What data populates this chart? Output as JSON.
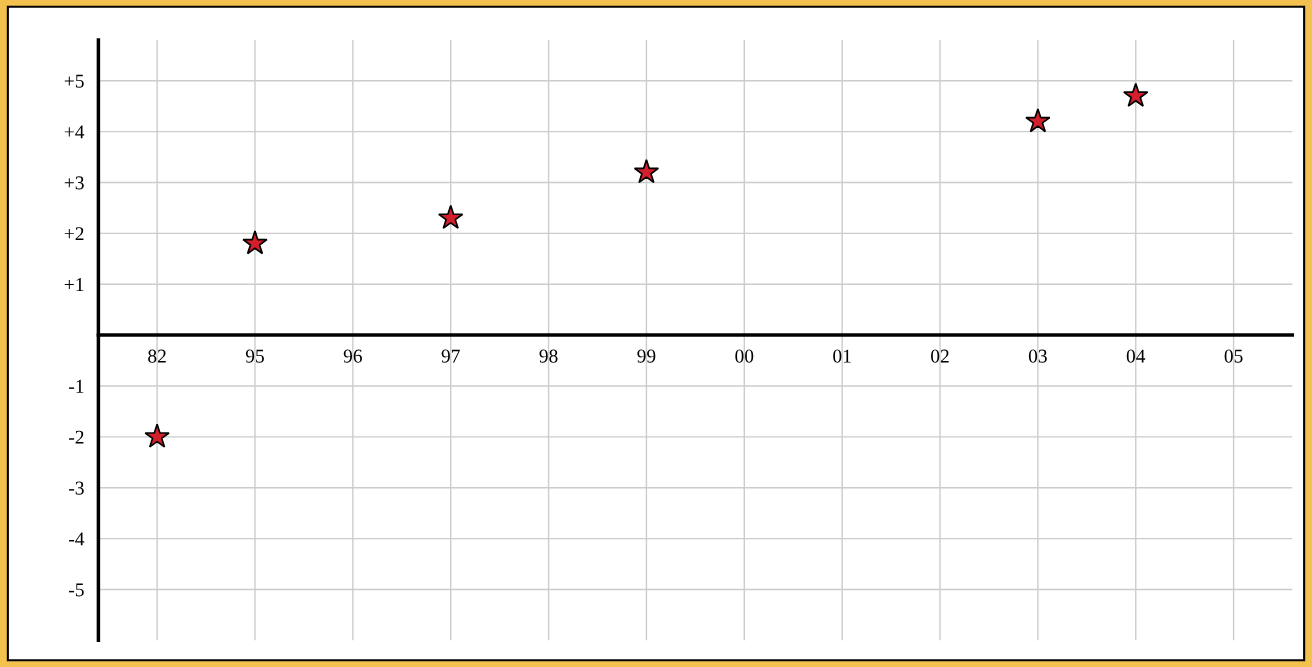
{
  "chart_data": {
    "type": "scatter",
    "categories": [
      "82",
      "95",
      "96",
      "97",
      "98",
      "99",
      "00",
      "01",
      "02",
      "03",
      "04",
      "05"
    ],
    "values": [
      -2,
      1.8,
      null,
      2.3,
      null,
      3.2,
      null,
      null,
      null,
      4.2,
      4.7,
      null
    ],
    "color": "#d21f2b",
    "marker": "star",
    "ylim": [
      -6,
      5.8
    ],
    "yticks": [
      {
        "value": 5,
        "label": "+5"
      },
      {
        "value": 4,
        "label": "+4"
      },
      {
        "value": 3,
        "label": "+3"
      },
      {
        "value": 2,
        "label": "+2"
      },
      {
        "value": 1,
        "label": "+1"
      },
      -1,
      -2,
      -3,
      -4,
      -5
    ],
    "grid": true
  }
}
